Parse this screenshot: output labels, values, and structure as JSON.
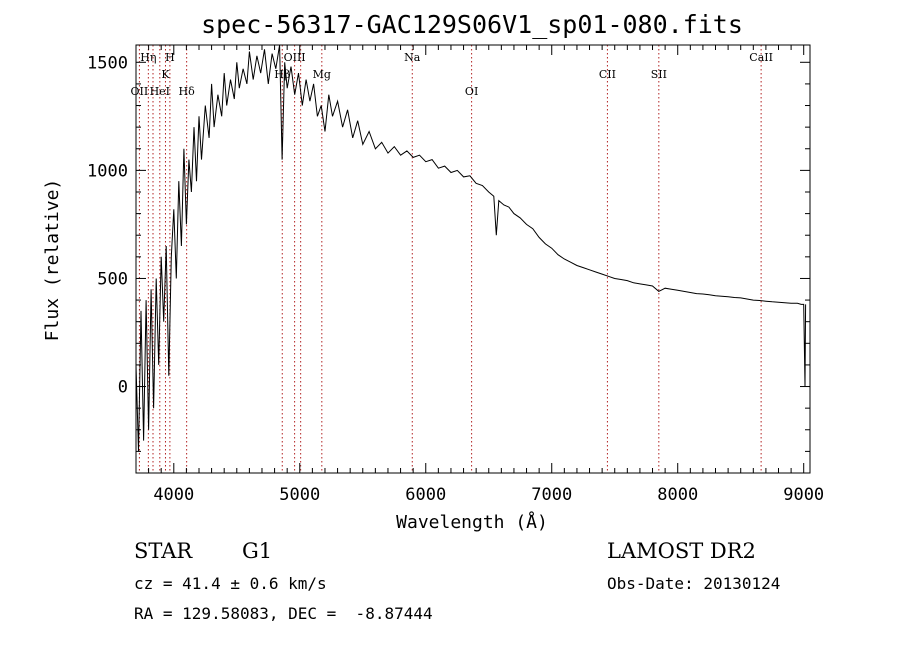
{
  "chart_data": {
    "type": "line",
    "title": "spec-56317-GAC129S06V1_sp01-080.fits",
    "xlabel": "Wavelength (Å)",
    "ylabel": "Flux (relative)",
    "xlim": [
      3700,
      9050
    ],
    "ylim": [
      -400,
      1580
    ],
    "xticks": [
      4000,
      5000,
      6000,
      7000,
      8000,
      9000
    ],
    "yticks": [
      0,
      500,
      1000,
      1500
    ],
    "line_color": "#000000",
    "marker_color": "#b22222",
    "series": [
      {
        "points": [
          [
            3700,
            100
          ],
          [
            3720,
            -300
          ],
          [
            3740,
            350
          ],
          [
            3760,
            -250
          ],
          [
            3780,
            400
          ],
          [
            3800,
            -200
          ],
          [
            3820,
            450
          ],
          [
            3840,
            -100
          ],
          [
            3860,
            500
          ],
          [
            3880,
            100
          ],
          [
            3900,
            600
          ],
          [
            3920,
            300
          ],
          [
            3940,
            650
          ],
          [
            3960,
            50
          ],
          [
            3980,
            600
          ],
          [
            4000,
            820
          ],
          [
            4020,
            500
          ],
          [
            4040,
            950
          ],
          [
            4060,
            650
          ],
          [
            4080,
            1100
          ],
          [
            4100,
            750
          ],
          [
            4120,
            1050
          ],
          [
            4140,
            900
          ],
          [
            4160,
            1200
          ],
          [
            4180,
            950
          ],
          [
            4200,
            1250
          ],
          [
            4220,
            1050
          ],
          [
            4250,
            1300
          ],
          [
            4280,
            1150
          ],
          [
            4300,
            1400
          ],
          [
            4320,
            1200
          ],
          [
            4350,
            1350
          ],
          [
            4380,
            1250
          ],
          [
            4400,
            1450
          ],
          [
            4420,
            1300
          ],
          [
            4450,
            1420
          ],
          [
            4480,
            1330
          ],
          [
            4500,
            1500
          ],
          [
            4520,
            1380
          ],
          [
            4550,
            1470
          ],
          [
            4580,
            1400
          ],
          [
            4600,
            1550
          ],
          [
            4630,
            1420
          ],
          [
            4660,
            1530
          ],
          [
            4690,
            1450
          ],
          [
            4720,
            1560
          ],
          [
            4750,
            1400
          ],
          [
            4780,
            1540
          ],
          [
            4810,
            1470
          ],
          [
            4840,
            1580
          ],
          [
            4860,
            1050
          ],
          [
            4880,
            1500
          ],
          [
            4900,
            1380
          ],
          [
            4930,
            1480
          ],
          [
            4960,
            1350
          ],
          [
            4990,
            1450
          ],
          [
            5020,
            1300
          ],
          [
            5050,
            1420
          ],
          [
            5080,
            1320
          ],
          [
            5110,
            1400
          ],
          [
            5140,
            1250
          ],
          [
            5170,
            1300
          ],
          [
            5200,
            1180
          ],
          [
            5230,
            1350
          ],
          [
            5260,
            1250
          ],
          [
            5300,
            1320
          ],
          [
            5340,
            1200
          ],
          [
            5380,
            1280
          ],
          [
            5420,
            1150
          ],
          [
            5460,
            1230
          ],
          [
            5500,
            1120
          ],
          [
            5550,
            1180
          ],
          [
            5600,
            1100
          ],
          [
            5650,
            1130
          ],
          [
            5700,
            1080
          ],
          [
            5750,
            1110
          ],
          [
            5800,
            1070
          ],
          [
            5850,
            1090
          ],
          [
            5900,
            1060
          ],
          [
            5950,
            1070
          ],
          [
            6000,
            1040
          ],
          [
            6050,
            1050
          ],
          [
            6100,
            1010
          ],
          [
            6150,
            1020
          ],
          [
            6200,
            990
          ],
          [
            6250,
            1000
          ],
          [
            6300,
            970
          ],
          [
            6350,
            975
          ],
          [
            6400,
            940
          ],
          [
            6450,
            930
          ],
          [
            6500,
            900
          ],
          [
            6540,
            880
          ],
          [
            6560,
            700
          ],
          [
            6580,
            860
          ],
          [
            6620,
            840
          ],
          [
            6660,
            830
          ],
          [
            6700,
            800
          ],
          [
            6750,
            780
          ],
          [
            6800,
            750
          ],
          [
            6850,
            730
          ],
          [
            6900,
            690
          ],
          [
            6950,
            660
          ],
          [
            7000,
            640
          ],
          [
            7050,
            610
          ],
          [
            7100,
            590
          ],
          [
            7150,
            575
          ],
          [
            7200,
            560
          ],
          [
            7250,
            550
          ],
          [
            7300,
            540
          ],
          [
            7350,
            530
          ],
          [
            7400,
            520
          ],
          [
            7450,
            510
          ],
          [
            7500,
            500
          ],
          [
            7550,
            495
          ],
          [
            7600,
            490
          ],
          [
            7650,
            480
          ],
          [
            7700,
            475
          ],
          [
            7750,
            470
          ],
          [
            7800,
            465
          ],
          [
            7850,
            440
          ],
          [
            7900,
            455
          ],
          [
            7950,
            450
          ],
          [
            8000,
            445
          ],
          [
            8050,
            440
          ],
          [
            8100,
            435
          ],
          [
            8150,
            430
          ],
          [
            8200,
            428
          ],
          [
            8250,
            425
          ],
          [
            8300,
            420
          ],
          [
            8350,
            418
          ],
          [
            8400,
            415
          ],
          [
            8450,
            412
          ],
          [
            8500,
            410
          ],
          [
            8550,
            405
          ],
          [
            8600,
            400
          ],
          [
            8650,
            398
          ],
          [
            8700,
            395
          ],
          [
            8750,
            392
          ],
          [
            8800,
            390
          ],
          [
            8850,
            388
          ],
          [
            8900,
            385
          ],
          [
            8950,
            385
          ],
          [
            8980,
            380
          ],
          [
            9000,
            380
          ],
          [
            9010,
            0
          ],
          [
            9015,
            380
          ]
        ]
      }
    ],
    "markers": [
      {
        "x": 3727,
        "label": "OII",
        "row": 3
      },
      {
        "x": 3798,
        "label": "Hη",
        "row": 1
      },
      {
        "x": 3835,
        "label": "",
        "row": 0
      },
      {
        "x": 3889,
        "label": "HeI",
        "row": 3
      },
      {
        "x": 3934,
        "label": "K",
        "row": 2
      },
      {
        "x": 3969,
        "label": "H",
        "row": 1
      },
      {
        "x": 4102,
        "label": "Hδ",
        "row": 3
      },
      {
        "x": 4861,
        "label": "Hβ",
        "row": 2
      },
      {
        "x": 4959,
        "label": "OIII",
        "row": 1
      },
      {
        "x": 5007,
        "label": "",
        "row": 0
      },
      {
        "x": 5175,
        "label": "Mg",
        "row": 2
      },
      {
        "x": 5893,
        "label": "Na",
        "row": 1
      },
      {
        "x": 6364,
        "label": "OI",
        "row": 3
      },
      {
        "x": 7442,
        "label": "CII",
        "row": 2
      },
      {
        "x": 7850,
        "label": "SII",
        "row": 2
      },
      {
        "x": 8662,
        "label": "CaII",
        "row": 1
      }
    ]
  },
  "info": {
    "object_class": "STAR",
    "subclass": "G1",
    "survey": "LAMOST DR2",
    "redshift": "cz = 41.4 ± 0.6 km/s",
    "obs_date": "Obs-Date: 20130124",
    "coords": "RA = 129.58083, DEC =  -8.87444"
  }
}
